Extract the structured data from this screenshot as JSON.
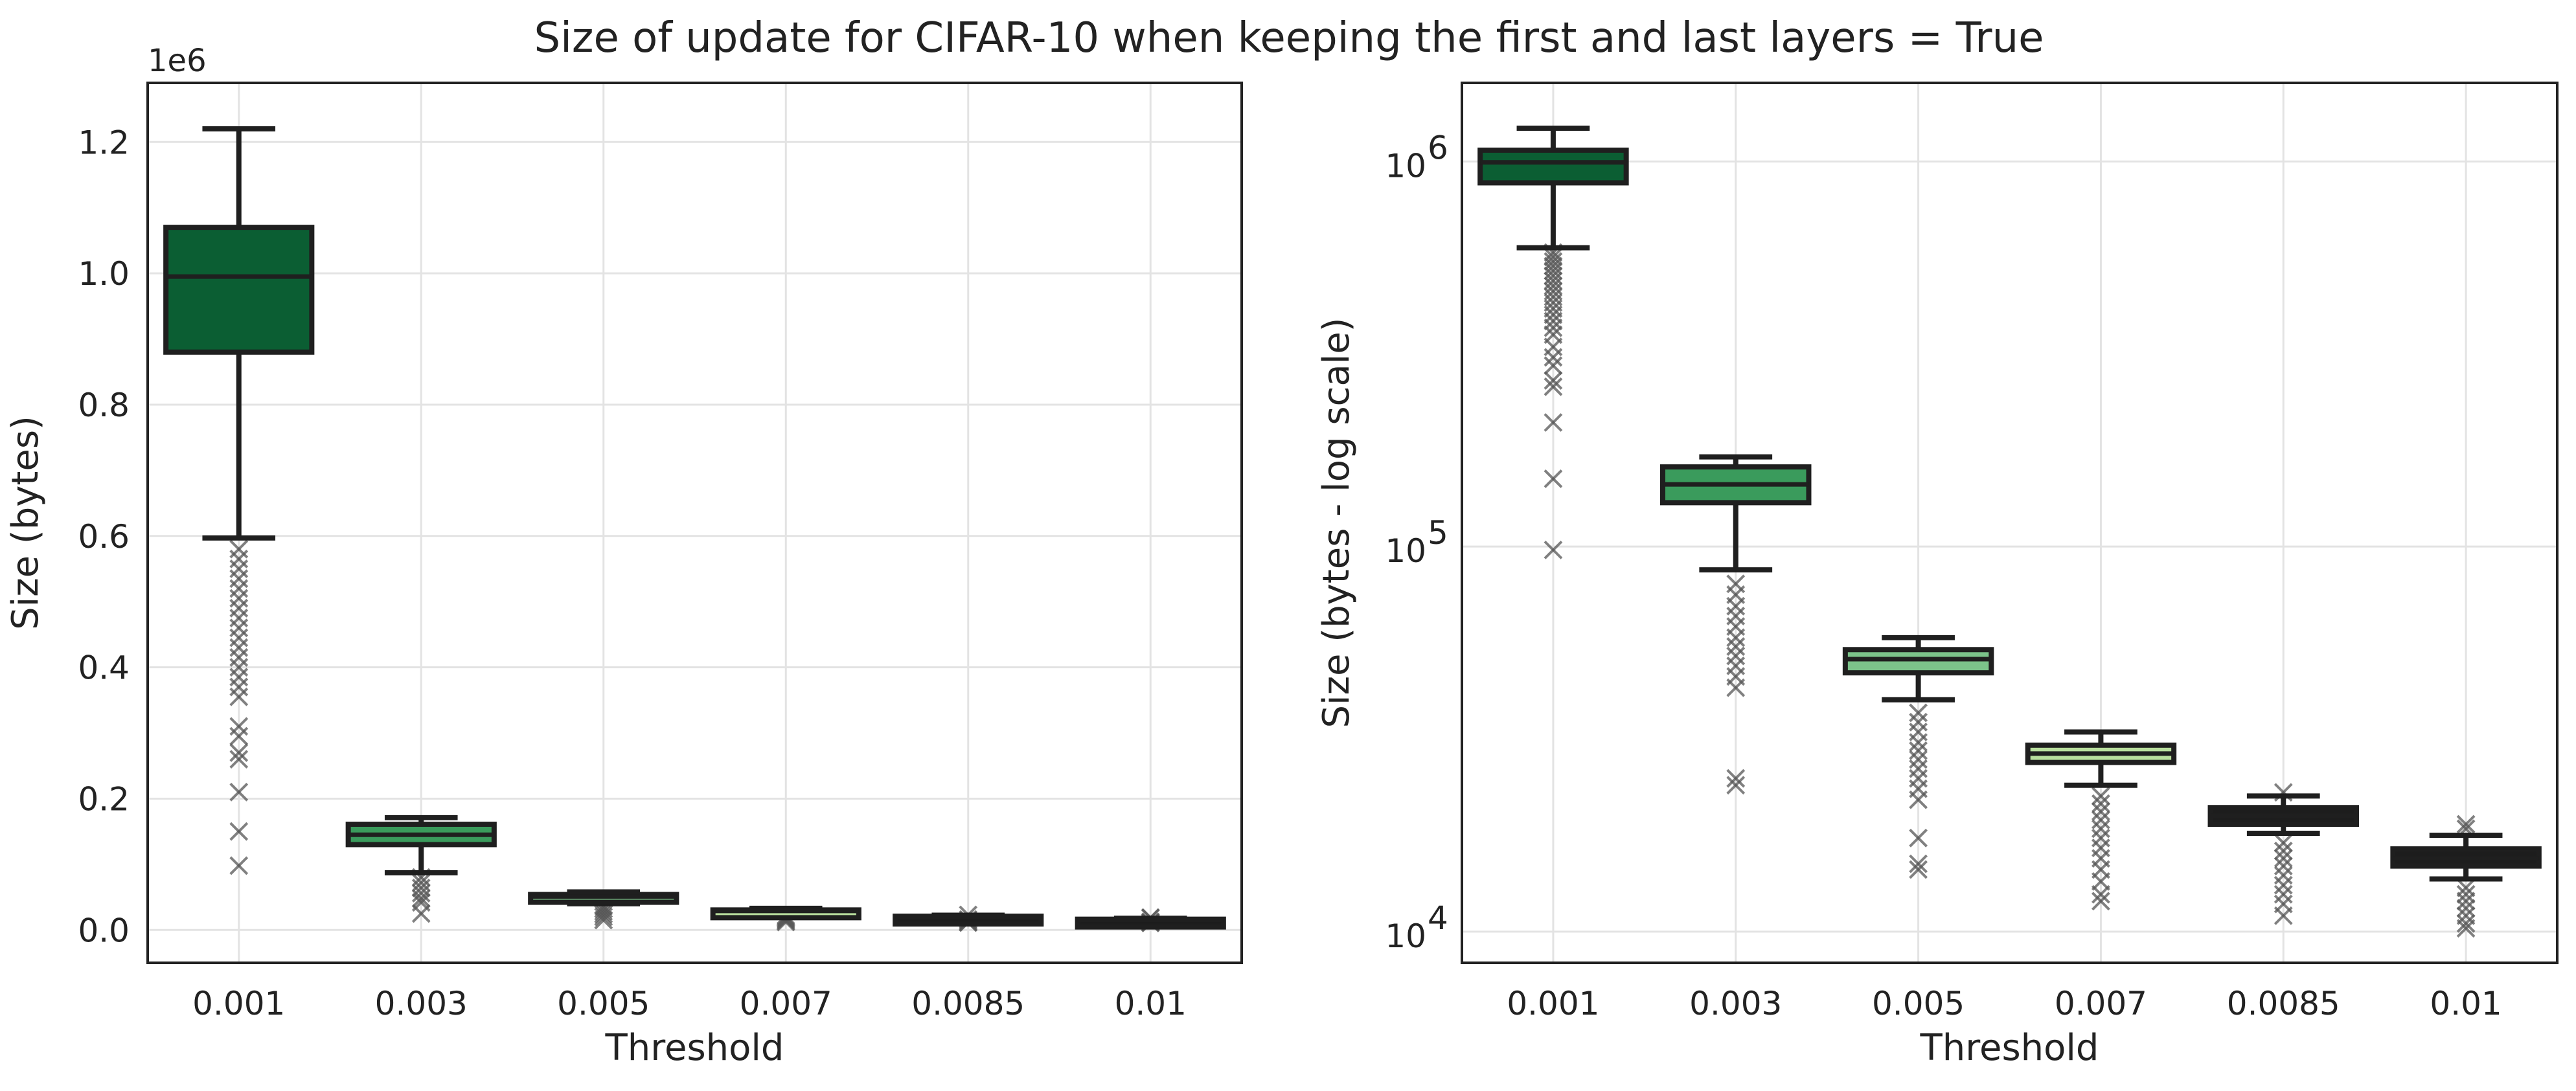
{
  "figure": {
    "title": "Size of update for CIFAR-10 when keeping the first and last layers = True",
    "colors": {
      "box_0.001": "#0b5e33",
      "box_0.003": "#3a9b5c",
      "box_0.005": "#7cc38a",
      "box_0.007": "#b9df9e",
      "box_0.0085": "#1d1d1d",
      "box_0.01": "#1d1d1d",
      "edge": "#1f1f1f",
      "grid": "#e3e3e3",
      "outlier": "#555555"
    },
    "outlier_marker": "x-icon"
  },
  "chart_data": [
    {
      "type": "box",
      "title": "",
      "xlabel": "Threshold",
      "ylabel": "Size (bytes)",
      "yscale": "linear",
      "y_offset_label": "1e6",
      "ylim": [
        -50000,
        1290000
      ],
      "yticks": [
        0,
        200000,
        400000,
        600000,
        800000,
        1000000,
        1200000
      ],
      "ytick_labels": [
        "0.0",
        "0.2",
        "0.4",
        "0.6",
        "0.8",
        "1.0",
        "1.2"
      ],
      "grid": true,
      "categories": [
        "0.001",
        "0.003",
        "0.005",
        "0.007",
        "0.0085",
        "0.01"
      ],
      "boxes": [
        {
          "category": "0.001",
          "whisker_low": 597000,
          "q1": 880000,
          "median": 995000,
          "q3": 1070000,
          "whisker_high": 1220000,
          "outliers": [
            580000,
            565000,
            550000,
            535000,
            520000,
            505000,
            490000,
            475000,
            460000,
            445000,
            430000,
            415000,
            400000,
            385000,
            370000,
            355000,
            310000,
            295000,
            270000,
            260000,
            210000,
            150000,
            98000
          ]
        },
        {
          "category": "0.003",
          "whisker_low": 87000,
          "q1": 130000,
          "median": 145000,
          "q3": 161000,
          "whisker_high": 171000,
          "outliers": [
            80000,
            72000,
            64000,
            56000,
            48000,
            42000,
            25000
          ]
        },
        {
          "category": "0.005",
          "whisker_low": 40000,
          "q1": 47000,
          "median": 51000,
          "q3": 54000,
          "whisker_high": 58000,
          "outliers": [
            36000,
            32000,
            28000,
            24000,
            20000,
            15000
          ]
        },
        {
          "category": "0.007",
          "whisker_low": 24000,
          "q1": 27500,
          "median": 29000,
          "q3": 30500,
          "whisker_high": 33000,
          "outliers": [
            22000,
            20000,
            18000,
            16000,
            14000,
            12000
          ]
        },
        {
          "category": "0.0085",
          "whisker_low": 18000,
          "q1": 19000,
          "median": 20000,
          "q3": 21000,
          "whisker_high": 22500,
          "outliers": [
            23000,
            16000,
            14000,
            12000,
            11000
          ]
        },
        {
          "category": "0.01",
          "whisker_low": 13700,
          "q1": 14800,
          "median": 15500,
          "q3": 16400,
          "whisker_high": 17800,
          "outliers": [
            18500,
            19000,
            12500,
            11500,
            10500
          ]
        }
      ]
    },
    {
      "type": "box",
      "title": "",
      "xlabel": "Threshold",
      "ylabel": "Size (bytes - log scale)",
      "yscale": "log",
      "ylim": [
        8300,
        1600000
      ],
      "yticks": [
        10000,
        100000,
        1000000
      ],
      "ytick_labels": [
        "10",
        "10",
        "10"
      ],
      "ytick_exponents": [
        "4",
        "5",
        "6"
      ],
      "grid": true,
      "categories": [
        "0.001",
        "0.003",
        "0.005",
        "0.007",
        "0.0085",
        "0.01"
      ],
      "boxes": [
        {
          "category": "0.001",
          "whisker_low": 597000,
          "q1": 880000,
          "median": 995000,
          "q3": 1070000,
          "whisker_high": 1220000,
          "outliers": [
            580000,
            565000,
            550000,
            535000,
            520000,
            505000,
            490000,
            475000,
            460000,
            445000,
            430000,
            415000,
            400000,
            385000,
            370000,
            355000,
            330000,
            310000,
            295000,
            270000,
            260000,
            210000,
            150000,
            98000
          ]
        },
        {
          "category": "0.003",
          "whisker_low": 87000,
          "q1": 130000,
          "median": 145000,
          "q3": 161000,
          "whisker_high": 171000,
          "outliers": [
            80000,
            75000,
            70000,
            66000,
            62000,
            58000,
            55000,
            52000,
            49000,
            46000,
            43000,
            25000,
            24000
          ]
        },
        {
          "category": "0.005",
          "whisker_low": 40000,
          "q1": 47000,
          "median": 51000,
          "q3": 54000,
          "whisker_high": 58000,
          "outliers": [
            37000,
            35000,
            33000,
            31000,
            29500,
            28000,
            26500,
            25000,
            23500,
            22000,
            17500,
            15000,
            14500
          ]
        },
        {
          "category": "0.007",
          "whisker_low": 24000,
          "q1": 27500,
          "median": 29000,
          "q3": 30500,
          "whisker_high": 33000,
          "outliers": [
            22500,
            21500,
            20500,
            19500,
            18500,
            17500,
            16500,
            15500,
            14500,
            13500,
            12500,
            12000
          ]
        },
        {
          "category": "0.0085",
          "whisker_low": 18000,
          "q1": 19000,
          "median": 20000,
          "q3": 21000,
          "whisker_high": 22500,
          "outliers": [
            23000,
            17000,
            16200,
            15500,
            14800,
            14000,
            13200,
            12500,
            11800,
            11000
          ]
        },
        {
          "category": "0.01",
          "whisker_low": 13700,
          "q1": 14800,
          "median": 15500,
          "q3": 16400,
          "whisker_high": 17800,
          "outliers": [
            18500,
            19000,
            13000,
            12500,
            12000,
            11500,
            11000,
            10500,
            10200
          ]
        }
      ]
    }
  ]
}
